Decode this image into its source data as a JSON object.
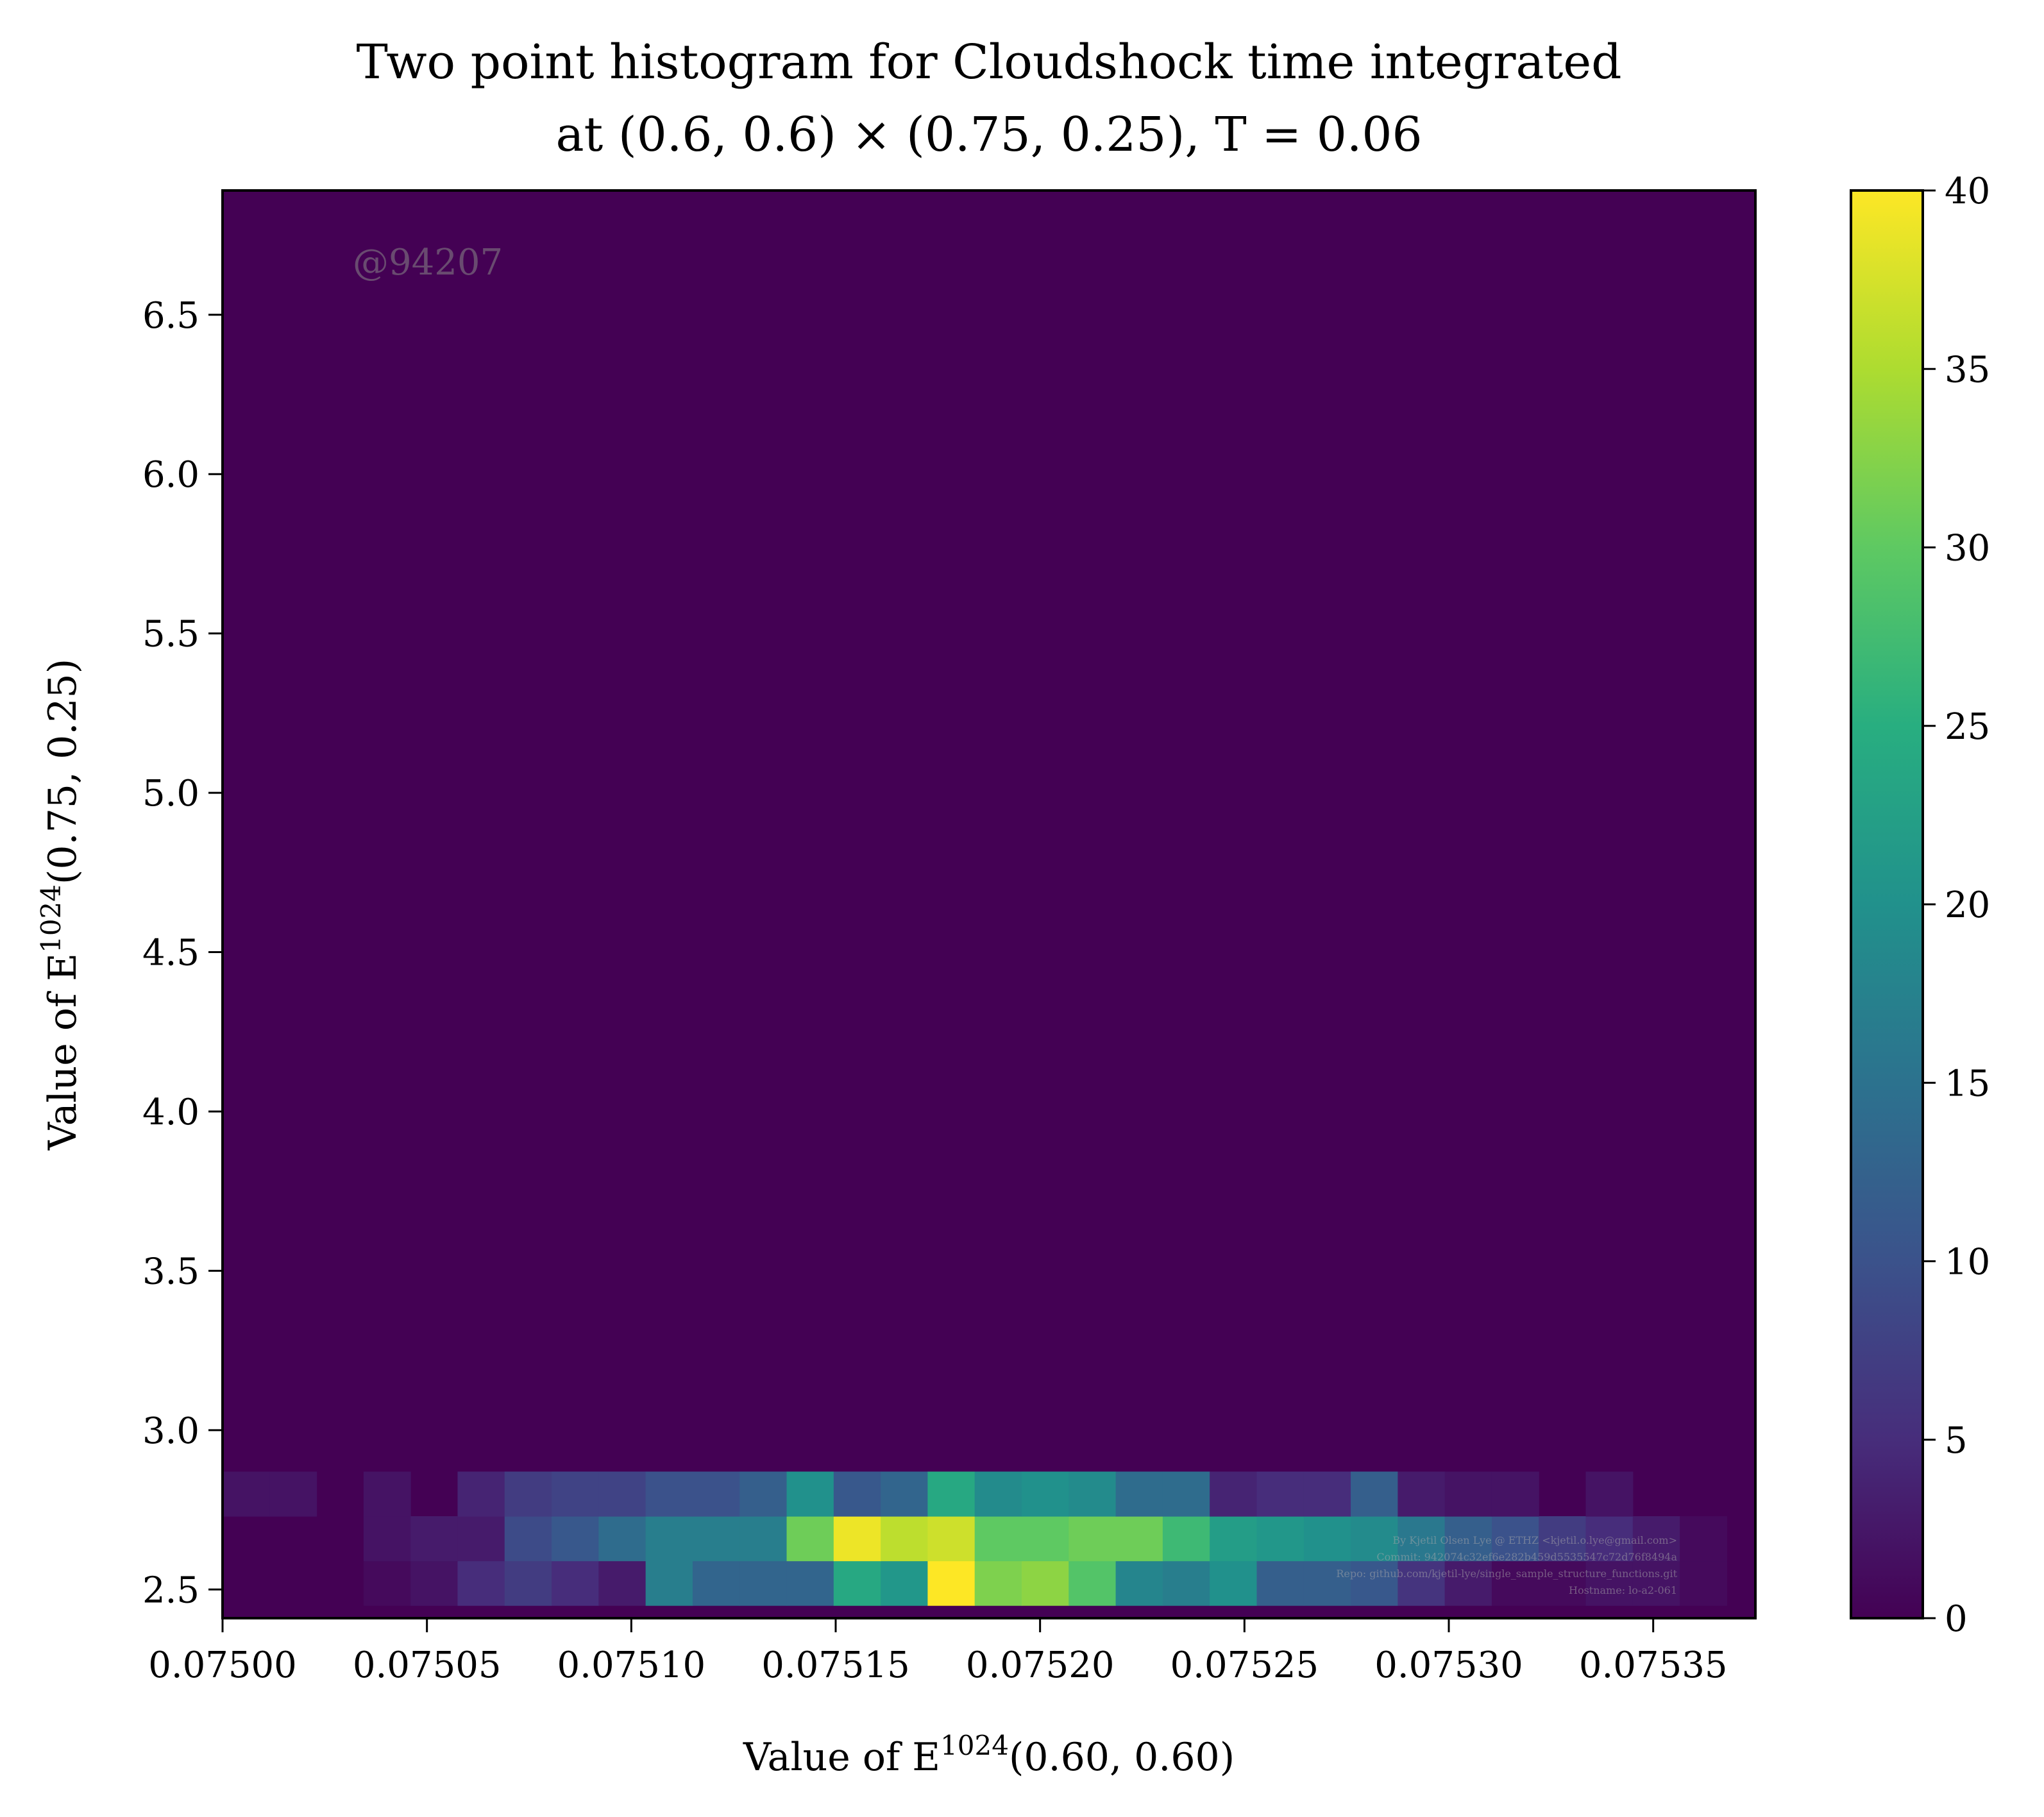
{
  "chart_data": {
    "type": "heatmap",
    "title_line1": "Two point histogram for Cloudshock time integrated",
    "title_line2": "at (0.6, 0.6) × (0.75, 0.25), T = 0.06",
    "xlabel": "Value of E",
    "xlabel_sup": "1024",
    "xlabel_tail": "(0.60, 0.60)",
    "ylabel": "Value of E",
    "ylabel_sup": "1024",
    "ylabel_tail": "(0.75, 0.25)",
    "xlim": [
      0.075,
      0.075375
    ],
    "ylim": [
      2.41,
      6.89
    ],
    "xticks": [
      "0.07500",
      "0.07505",
      "0.07510",
      "0.07515",
      "0.07520",
      "0.07525",
      "0.07530",
      "0.07535"
    ],
    "xtick_values": [
      0.075,
      0.07505,
      0.0751,
      0.07515,
      0.0752,
      0.07525,
      0.0753,
      0.07535
    ],
    "yticks": [
      "2.5",
      "3.0",
      "3.5",
      "4.0",
      "4.5",
      "5.0",
      "5.5",
      "6.0",
      "6.5"
    ],
    "ytick_values": [
      2.5,
      3.0,
      3.5,
      4.0,
      4.5,
      5.0,
      5.5,
      6.0,
      6.5
    ],
    "colorbar": {
      "colormap": "viridis",
      "range": [
        0,
        40
      ],
      "ticks": [
        "0",
        "5",
        "10",
        "15",
        "20",
        "25",
        "30",
        "35",
        "40"
      ],
      "tick_values": [
        0,
        5,
        10,
        15,
        20,
        25,
        30,
        35,
        40
      ]
    },
    "bins": {
      "x0": 0.075,
      "dx": 1.15e-05,
      "ncols": 32,
      "y_edges": [
        2.45,
        2.59,
        2.73,
        2.87
      ]
    },
    "counts_rows_bottom_to_top": [
      [
        0,
        0,
        0,
        1,
        2,
        5,
        7,
        5,
        3,
        17,
        13,
        13,
        13,
        24,
        21,
        40,
        32,
        33,
        29,
        18,
        17,
        20,
        12,
        12,
        11,
        6,
        3,
        1,
        1,
        2,
        2,
        1
      ],
      [
        0,
        0,
        0,
        2,
        3,
        3,
        9,
        11,
        14,
        17,
        17,
        17,
        31,
        39,
        36,
        37,
        30,
        30,
        31,
        31,
        27,
        22,
        21,
        20,
        19,
        16,
        12,
        10,
        7,
        5,
        3,
        1
      ],
      [
        2,
        2,
        0,
        2,
        0,
        4,
        7,
        8,
        8,
        10,
        10,
        12,
        20,
        11,
        13,
        24,
        19,
        20,
        19,
        14,
        14,
        4,
        5,
        5,
        12,
        3,
        2,
        2,
        0,
        2,
        0,
        0
      ]
    ]
  },
  "watermark": "@94207",
  "credits": [
    "By Kjetil Olsen Lye @ ETHZ <kjetil.o.lye@gmail.com>",
    "Commit: 942074c32ef6e282b459d5535547c72d76f8494a",
    "Repo: github.com/kjetil-lye/single_sample_structure_functions.git",
    "Hostname: lo-a2-061"
  ]
}
